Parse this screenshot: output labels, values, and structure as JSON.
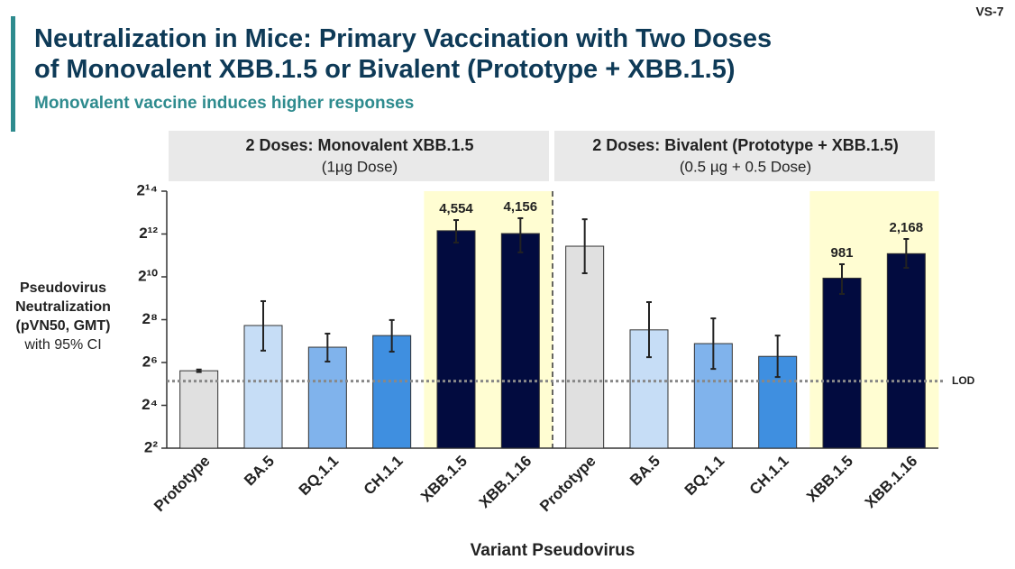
{
  "page_id": "VS-7",
  "chart_data": {
    "type": "bar",
    "title": [
      "Neutralization in Mice: Primary Vaccination with Two Doses",
      "of Monovalent XBB.1.5 or Bivalent (Prototype + XBB.1.5)"
    ],
    "subtitle": "Monovalent vaccine induces higher responses",
    "groups": [
      {
        "title": "2 Doses: Monovalent XBB.1.5",
        "subtitle": "(1µg Dose)",
        "count": 6
      },
      {
        "title": "2 Doses: Bivalent (Prototype + XBB.1.5)",
        "subtitle": "(0.5 µg + 0.5 Dose)",
        "count": 6
      }
    ],
    "categories": [
      "Prototype",
      "BA.5",
      "BQ.1.1",
      "CH.1.1",
      "XBB.1.5",
      "XBB.1.16",
      "Prototype",
      "BA.5",
      "BQ.1.1",
      "CH.1.1",
      "XBB.1.5",
      "XBB.1.16"
    ],
    "values": [
      49,
      212,
      105,
      153,
      4554,
      4156,
      2760,
      184,
      118,
      78,
      981,
      2168
    ],
    "value_labels": [
      null,
      null,
      null,
      null,
      "4,554",
      "4,156",
      null,
      null,
      null,
      null,
      "981",
      "2,168"
    ],
    "ci_low": [
      47,
      94,
      66,
      91,
      3100,
      2260,
      1150,
      76,
      52,
      40,
      588,
      1370
    ],
    "ci_high": [
      51,
      466,
      163,
      253,
      6430,
      6830,
      6600,
      452,
      267,
      153,
      1540,
      3490
    ],
    "colors": [
      "#e0e0e0",
      "#c6ddf6",
      "#80b3ec",
      "#3f8fe0",
      "#020b3f",
      "#020b3f",
      "#e0e0e0",
      "#c6ddf6",
      "#80b3ec",
      "#3f8fe0",
      "#020b3f",
      "#020b3f"
    ],
    "highlight": [
      4,
      5,
      10,
      11
    ],
    "highlight_color": "#fffdd2",
    "log_base": 2,
    "ylim": [
      4,
      16384
    ],
    "yticks": [
      {
        "value": 4,
        "label": "2²"
      },
      {
        "value": 16,
        "label": "2⁴"
      },
      {
        "value": 64,
        "label": "2⁶"
      },
      {
        "value": 256,
        "label": "2⁸"
      },
      {
        "value": 1024,
        "label": "2¹⁰"
      },
      {
        "value": 4096,
        "label": "2¹²"
      },
      {
        "value": 16384,
        "label": "2¹⁴"
      }
    ],
    "y_label": [
      "Pseudovirus",
      "Neutralization",
      "(pVN50, GMT)",
      "with 95% CI"
    ],
    "x_label": "Variant Pseudovirus",
    "lod": {
      "value": 35,
      "label": "LOD"
    }
  }
}
